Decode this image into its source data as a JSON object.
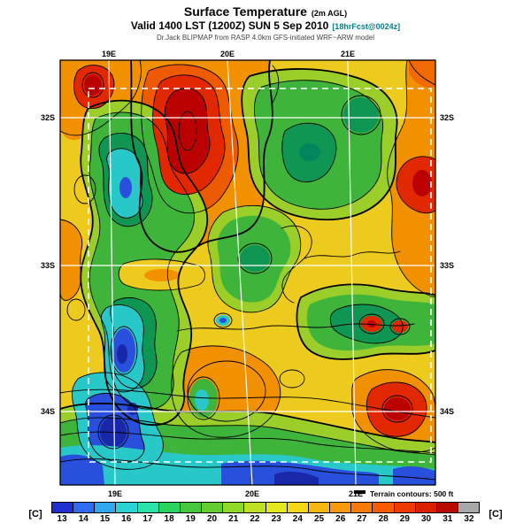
{
  "header": {
    "title": "Surface Temperature",
    "title_suffix": "(2m AGL)",
    "valid_line": "Valid 1400 LST (1200Z) SUN 5 Sep 2010",
    "forecast_tag": "[18hrFcst@0024z]",
    "model_line": "Dr.Jack BLIPMAP from RASP 4.0km GFS-initiated WRF~ARW model"
  },
  "map": {
    "lat_labels": [
      "32S",
      "33S",
      "34S"
    ],
    "lon_labels": [
      "19E",
      "20E",
      "21E"
    ],
    "terrain_note": "Terrain contours: 500 ft"
  },
  "colorbar": {
    "unit_left": "[C]",
    "unit_right": "[C]",
    "stops": [
      {
        "label": "13",
        "color": "#1f2ecc"
      },
      {
        "label": "14",
        "color": "#2e6bf0"
      },
      {
        "label": "15",
        "color": "#2fa8f0"
      },
      {
        "label": "16",
        "color": "#2bd4d4"
      },
      {
        "label": "17",
        "color": "#2be3a8"
      },
      {
        "label": "18",
        "color": "#2bd25b"
      },
      {
        "label": "19",
        "color": "#46c63c"
      },
      {
        "label": "20",
        "color": "#64ce30"
      },
      {
        "label": "21",
        "color": "#90d82a"
      },
      {
        "label": "22",
        "color": "#bce223"
      },
      {
        "label": "23",
        "color": "#e4e81c"
      },
      {
        "label": "24",
        "color": "#f5d716"
      },
      {
        "label": "25",
        "color": "#f7b711"
      },
      {
        "label": "26",
        "color": "#f8980b"
      },
      {
        "label": "27",
        "color": "#f87a06"
      },
      {
        "label": "28",
        "color": "#f55c03"
      },
      {
        "label": "29",
        "color": "#ee3a00"
      },
      {
        "label": "30",
        "color": "#d92000"
      },
      {
        "label": "31",
        "color": "#b80a00"
      },
      {
        "label": "32",
        "color": "#a8a8a8"
      }
    ]
  },
  "chart_data": {
    "type": "heatmap",
    "title": "Surface Temperature (2m AGL)",
    "subtitle": "Valid 1400 LST (1200Z) SUN 5 Sep 2010 [18hrFcst@0024z]",
    "units": "C",
    "scale_values": [
      13,
      14,
      15,
      16,
      17,
      18,
      19,
      20,
      21,
      22,
      23,
      24,
      25,
      26,
      27,
      28,
      29,
      30,
      31,
      32
    ],
    "x_ticks": [
      "19E",
      "20E",
      "21E"
    ],
    "y_ticks": [
      "32S",
      "33S",
      "34S"
    ],
    "legend_position": "bottom",
    "annotations": [
      "Terrain contours: 500 ft"
    ]
  }
}
